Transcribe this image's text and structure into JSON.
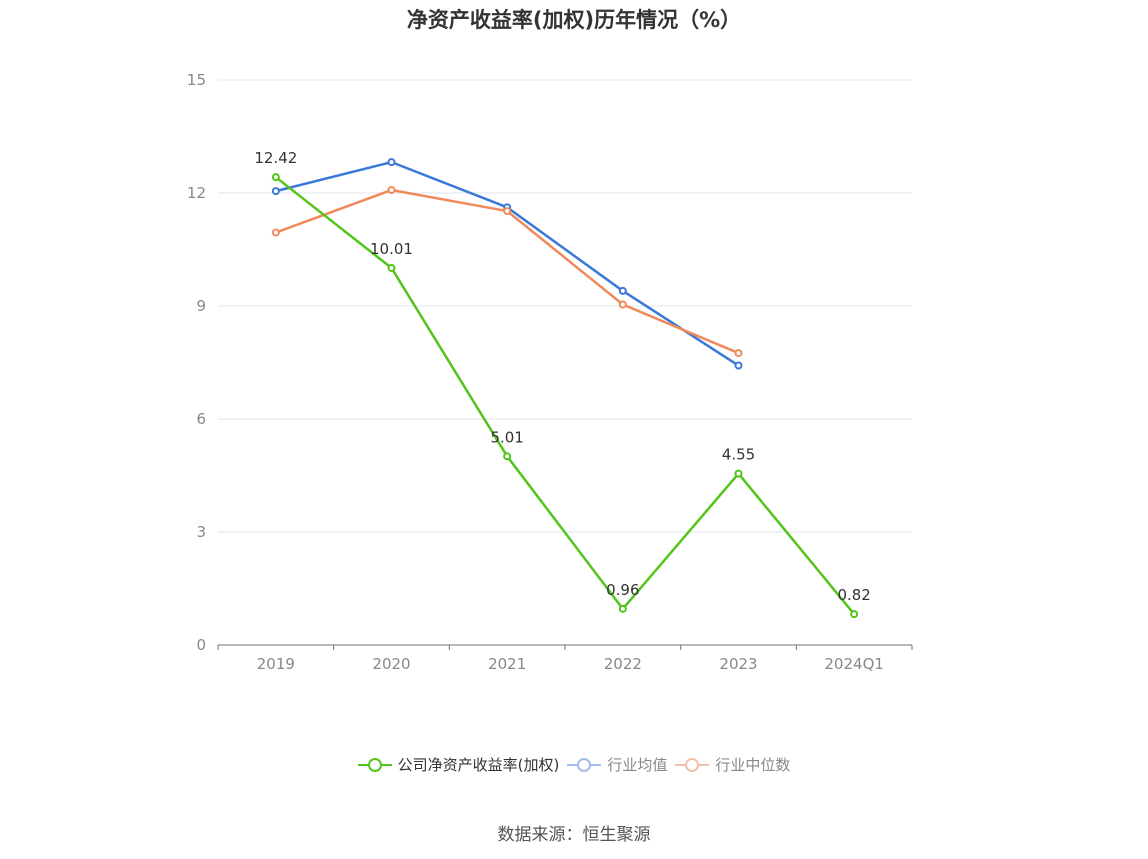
{
  "title": "净资产收益率(加权)历年情况（%）",
  "source": "数据来源：恒生聚源",
  "chart_data": {
    "type": "line",
    "categories": [
      "2019",
      "2020",
      "2021",
      "2022",
      "2023",
      "2024Q1"
    ],
    "ylim": [
      0,
      15
    ],
    "yticks": [
      "0",
      "3",
      "6",
      "9",
      "12",
      "15"
    ],
    "grid": true,
    "legend_position": "bottom",
    "series": [
      {
        "name": "公司净资产收益率(加权)",
        "color": "#52c41a",
        "values": [
          12.42,
          10.01,
          5.01,
          0.96,
          4.55,
          0.82
        ],
        "labels": [
          "12.42",
          "10.01",
          "5.01",
          "0.96",
          "4.55",
          "0.82"
        ]
      },
      {
        "name": "行业均值",
        "color": "#3a78d8",
        "values": [
          12.05,
          12.82,
          11.62,
          9.4,
          7.42,
          null
        ]
      },
      {
        "name": "行业中位数",
        "color": "#f08a5d",
        "values": [
          10.95,
          12.08,
          11.52,
          9.04,
          7.75,
          null
        ]
      }
    ]
  }
}
